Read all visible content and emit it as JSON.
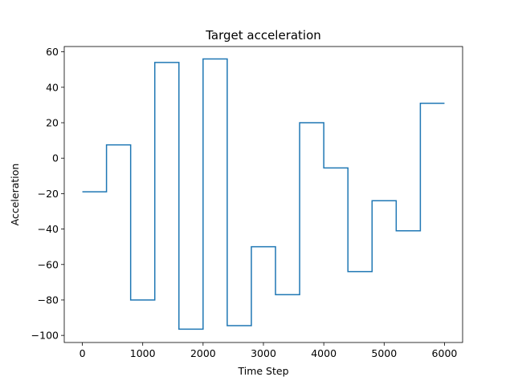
{
  "chart_data": {
    "type": "line",
    "title": "Target acceleration",
    "xlabel": "Time Step",
    "ylabel": "Acceleration",
    "xlim": [
      -300,
      6300
    ],
    "ylim": [
      -104,
      63
    ],
    "xticks": [
      0,
      1000,
      2000,
      3000,
      4000,
      5000,
      6000
    ],
    "yticks": [
      -100,
      -80,
      -60,
      -40,
      -20,
      0,
      20,
      40,
      60
    ],
    "xtick_labels": [
      "0",
      "1000",
      "2000",
      "3000",
      "4000",
      "5000",
      "6000"
    ],
    "ytick_labels": [
      "−100",
      "−80",
      "−60",
      "−40",
      "−20",
      "0",
      "20",
      "40",
      "60"
    ],
    "grid": false,
    "line_color": "#1f77b4",
    "series": [
      {
        "step": "post",
        "x": [
          0,
          400,
          800,
          1200,
          1600,
          2000,
          2400,
          2800,
          3200,
          3600,
          4000,
          4400,
          4800,
          5200,
          5600,
          6000
        ],
        "values": [
          -19,
          7.5,
          -80,
          54,
          -96.5,
          56,
          -94.5,
          -50,
          -77,
          20,
          -5.5,
          -64,
          -24,
          -41,
          31,
          31
        ]
      }
    ]
  }
}
